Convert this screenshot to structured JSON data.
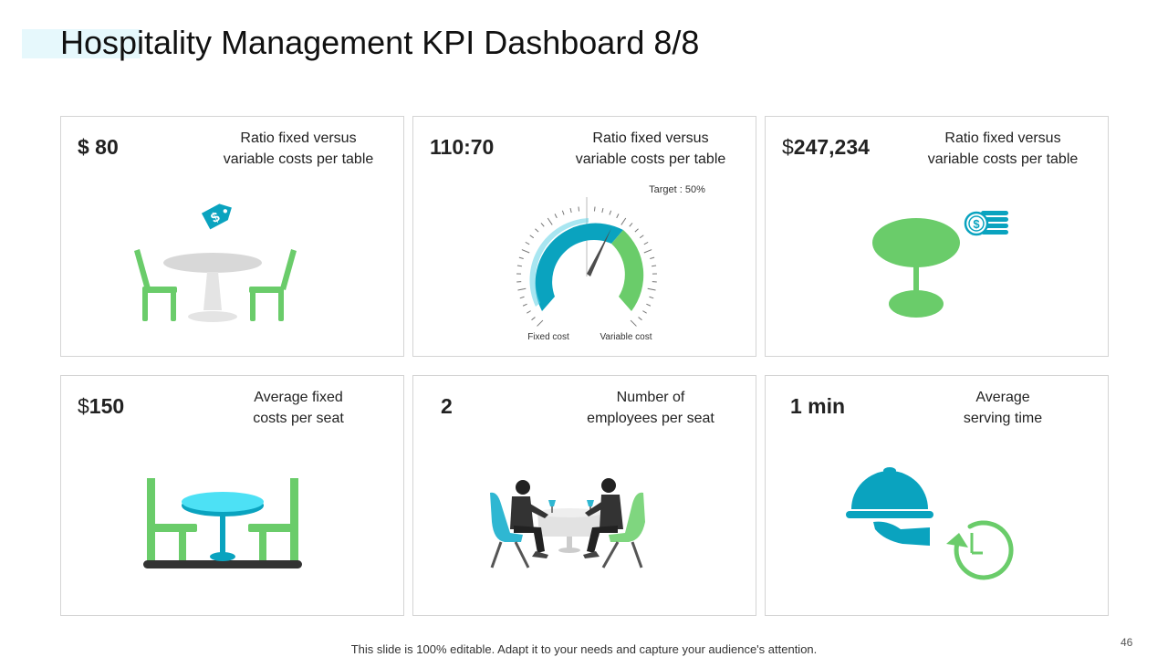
{
  "title": "Hospitality Management KPI Dashboard 8/8",
  "colors": {
    "green": "#6acc6a",
    "teal": "#0aa3bf",
    "cyan": "#4de1f5",
    "gray": "#d5d5d5",
    "accent_bar": "#e6f8fc"
  },
  "cards": [
    {
      "value": "$ 80",
      "label_line1": "Ratio fixed versus",
      "label_line2": "variable costs per table",
      "icon": "round-table-chairs-price-tag-icon"
    },
    {
      "value": "110:70",
      "label_line1": "Ratio fixed versus",
      "label_line2": "variable costs per table",
      "icon": "cost-gauge",
      "gauge": {
        "target_label": "Target : 50%",
        "fixed_label": "Fixed cost",
        "variable_label": "Variable cost",
        "fixed_ratio": 110,
        "variable_ratio": 70
      }
    },
    {
      "value_currency": "$",
      "value_number": "247,234",
      "label_line1": "Ratio fixed versus",
      "label_line2": "variable costs per table",
      "icon": "table-with-coins-icon"
    },
    {
      "value_currency": "$",
      "value_number": "150",
      "label_line1": "Average fixed",
      "label_line2": "costs per seat",
      "icon": "cafe-table-chairs-icon"
    },
    {
      "value": "2",
      "label_line1": "Number of",
      "label_line2": "employees per seat",
      "icon": "two-diners-icon"
    },
    {
      "value": "1 min",
      "label_line1": "Average",
      "label_line2": "serving time",
      "icon": "cloche-timer-icon"
    }
  ],
  "footer": "This slide is 100% editable. Adapt it to your needs and capture your audience's attention.",
  "page_number": "46"
}
